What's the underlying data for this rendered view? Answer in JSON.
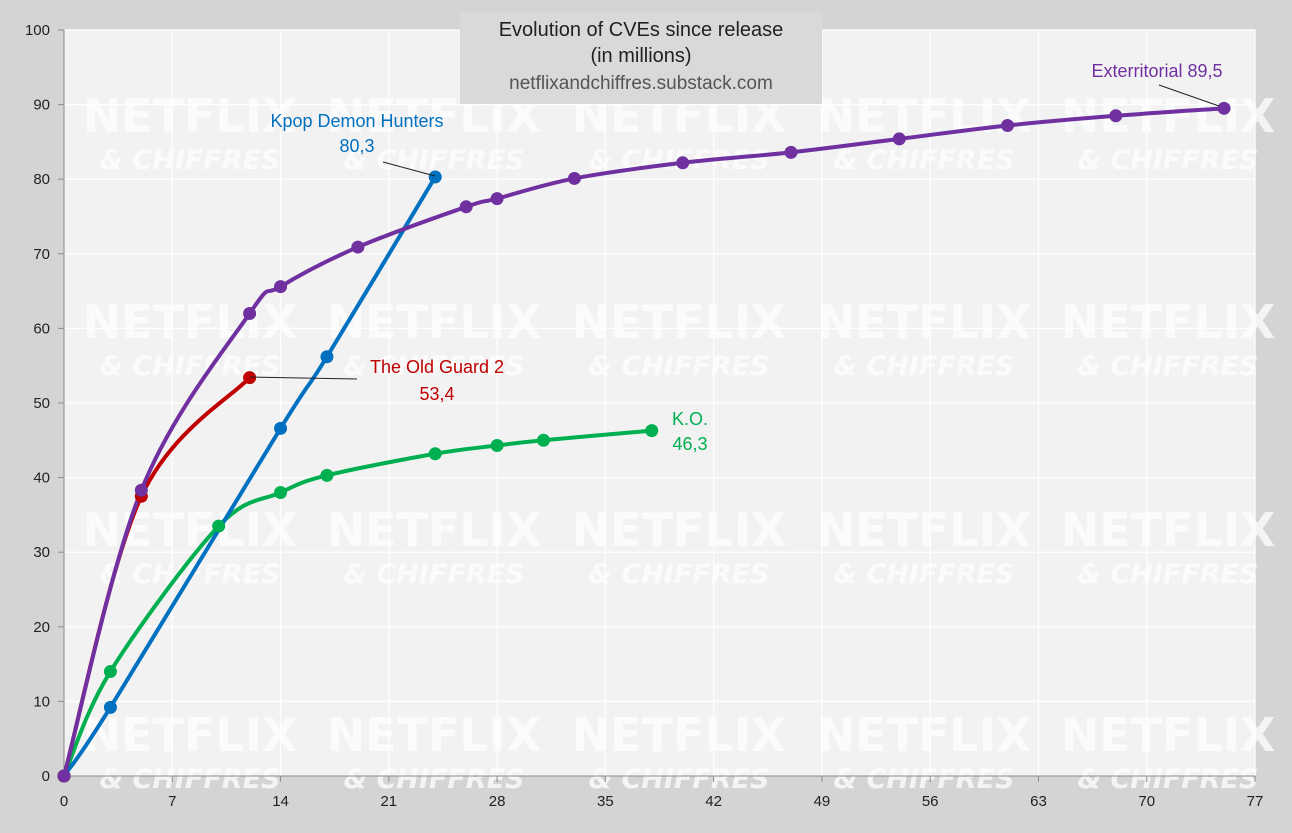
{
  "chart_data": {
    "type": "line",
    "title": "Evolution of CVEs since release",
    "subtitle": "(in millions)",
    "source": "netflixandchiffres.substack.com",
    "watermark": {
      "line1": "NETFLIX",
      "line2": "& CHIFFRES"
    },
    "xlim": [
      0,
      77
    ],
    "ylim": [
      0,
      100
    ],
    "x_ticks": [
      0,
      7,
      14,
      21,
      28,
      35,
      42,
      49,
      56,
      63,
      70,
      77
    ],
    "y_ticks": [
      0,
      10,
      20,
      30,
      40,
      50,
      60,
      70,
      80,
      90,
      100
    ],
    "grid": true,
    "colors": {
      "background": "#d4d4d4",
      "plot_area": "#f2f2f2",
      "grid": "#ffffff",
      "title_box": "#d9d9d9"
    },
    "series": [
      {
        "name": "K.O.",
        "color": "#00b050",
        "annotation": {
          "line1": "K.O.",
          "line2": "46,3"
        },
        "points": [
          [
            0,
            0
          ],
          [
            3,
            14
          ],
          [
            10,
            33.5
          ],
          [
            14,
            38
          ],
          [
            17,
            40.3
          ],
          [
            24,
            43.2
          ],
          [
            28,
            44.3
          ],
          [
            31,
            45
          ],
          [
            38,
            46.3
          ]
        ]
      },
      {
        "name": "Kpop Demon Hunters",
        "color": "#0070c0",
        "annotation": {
          "line1": "Kpop Demon Hunters",
          "line2": "80,3"
        },
        "points": [
          [
            0,
            0
          ],
          [
            3,
            9.2
          ],
          [
            14,
            46.6
          ],
          [
            17,
            56.2
          ],
          [
            24,
            80.3
          ]
        ]
      },
      {
        "name": "The Old Guard 2",
        "color": "#c00000",
        "annotation": {
          "line1": "The Old Guard 2",
          "line2": "53,4"
        },
        "points": [
          [
            0,
            0
          ],
          [
            5,
            37.5
          ],
          [
            12,
            53.4
          ]
        ]
      },
      {
        "name": "Exterritorial",
        "color": "#7030a0",
        "annotation": {
          "line1": "Exterritorial 89,5"
        },
        "points": [
          [
            0,
            0
          ],
          [
            5,
            38.3
          ],
          [
            12,
            62
          ],
          [
            14,
            65.6
          ],
          [
            19,
            70.9
          ],
          [
            26,
            76.3
          ],
          [
            28,
            77.4
          ],
          [
            33,
            80.1
          ],
          [
            40,
            82.2
          ],
          [
            47,
            83.6
          ],
          [
            54,
            85.4
          ],
          [
            61,
            87.2
          ],
          [
            68,
            88.5
          ],
          [
            75,
            89.5
          ]
        ]
      }
    ]
  }
}
